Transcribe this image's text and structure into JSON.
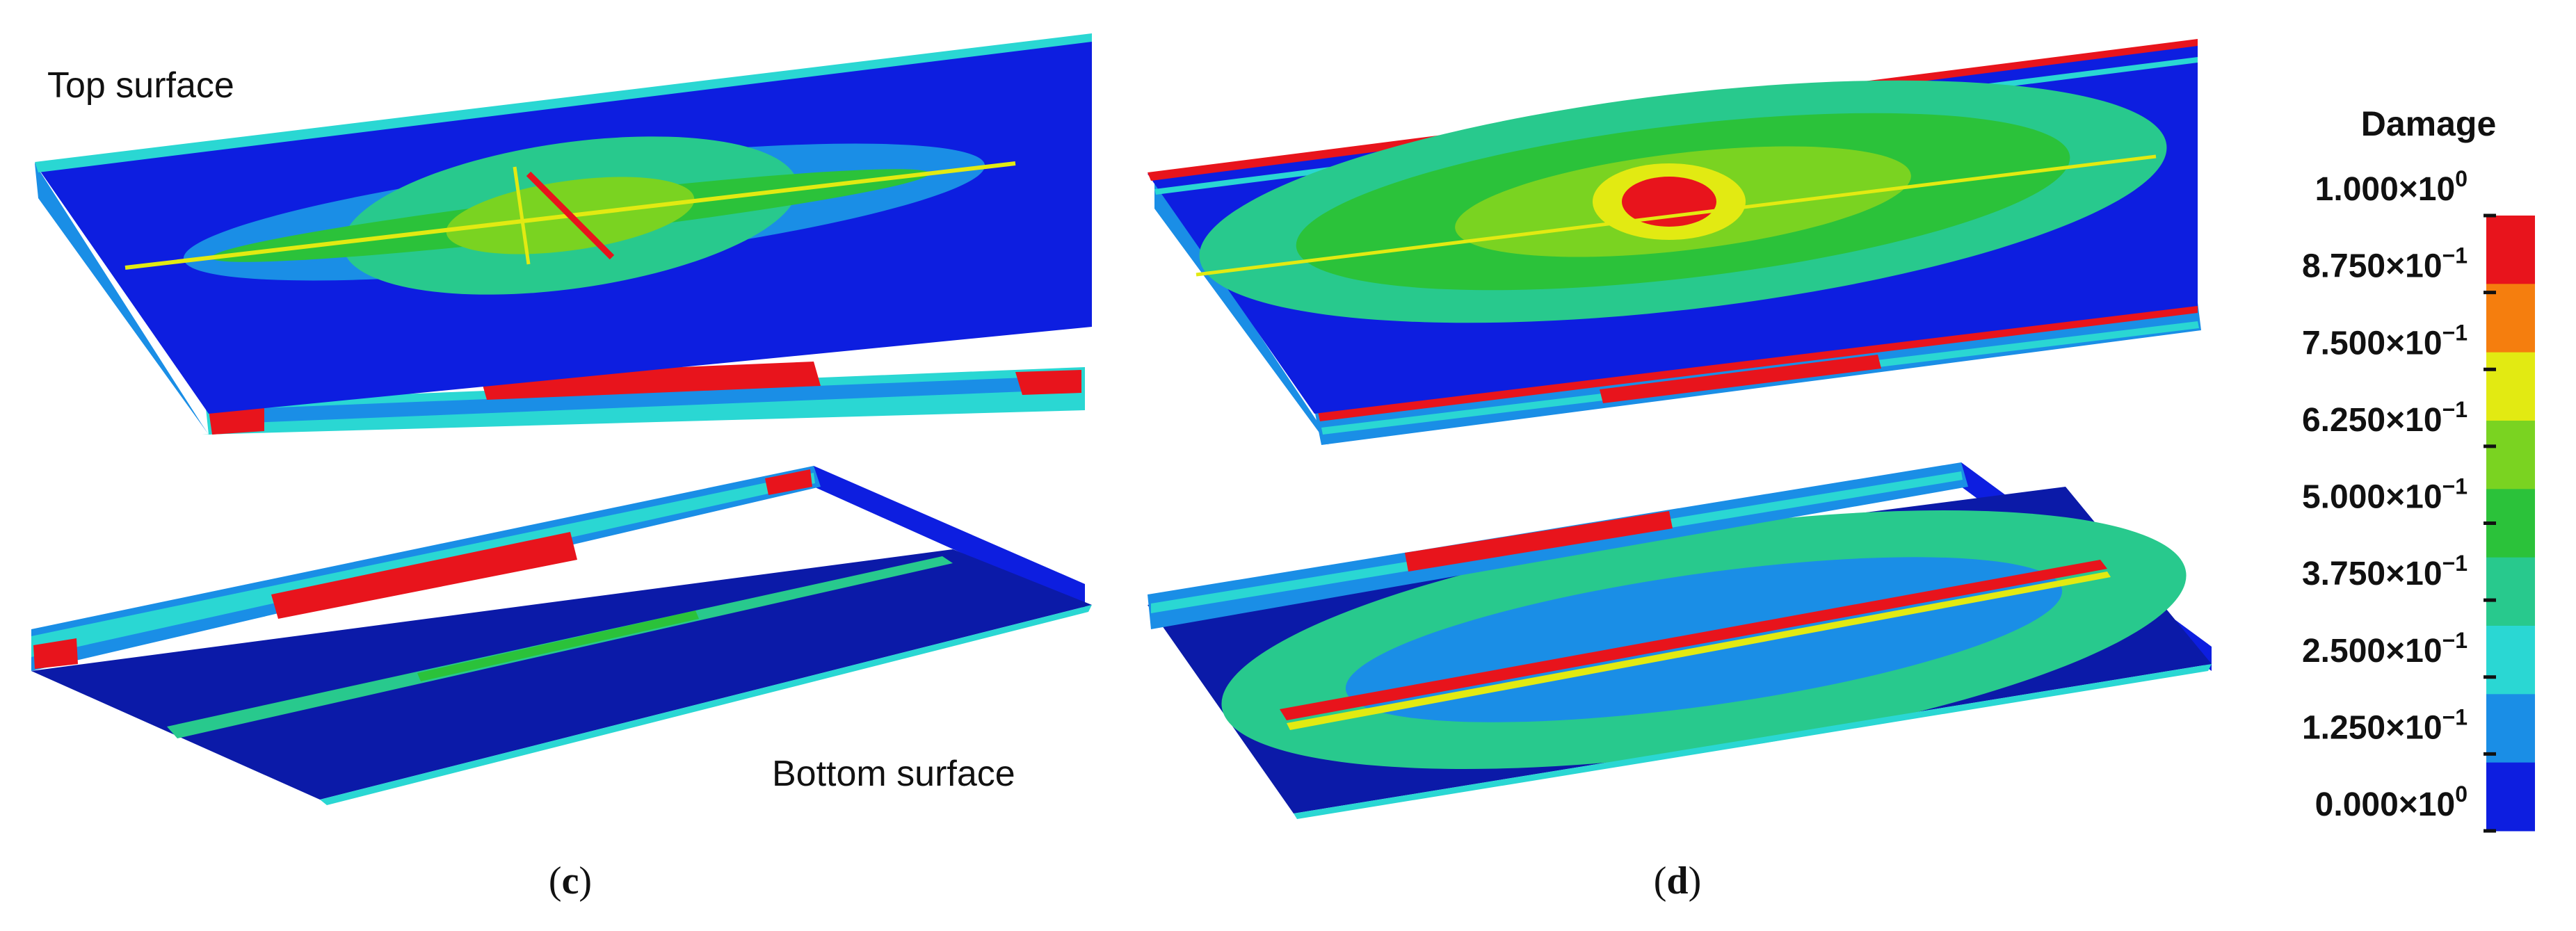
{
  "labels": {
    "top_surface": "Top surface",
    "bottom_surface": "Bottom surface"
  },
  "captions": {
    "c_open": "(",
    "c_letter": "c",
    "c_close": ")",
    "d_open": "(",
    "d_letter": "d",
    "d_close": ")"
  },
  "legend": {
    "title": "Damage",
    "ticks": [
      {
        "mantissa": "1.000",
        "exp": "0"
      },
      {
        "mantissa": "8.750",
        "exp": "−1"
      },
      {
        "mantissa": "7.500",
        "exp": "−1"
      },
      {
        "mantissa": "6.250",
        "exp": "−1"
      },
      {
        "mantissa": "5.000",
        "exp": "−1"
      },
      {
        "mantissa": "3.750",
        "exp": "−1"
      },
      {
        "mantissa": "2.500",
        "exp": "−1"
      },
      {
        "mantissa": "1.250",
        "exp": "−1"
      },
      {
        "mantissa": "0.000",
        "exp": "0"
      }
    ],
    "colors": [
      "#e8141c",
      "#f57e0e",
      "#e2ea12",
      "#7ad321",
      "#2bc23a",
      "#28c98d",
      "#2ad7d3",
      "#1a8ee6",
      "#0d1ee0"
    ]
  },
  "palette": {
    "low": "#0d1ee0",
    "low_dark": "#0b1aa8",
    "cyan": "#2ad7d3",
    "green": "#2bc23a",
    "lime": "#7ad321",
    "yellow": "#e2ea12",
    "red": "#e8141c",
    "sky": "#1a8ee6"
  }
}
